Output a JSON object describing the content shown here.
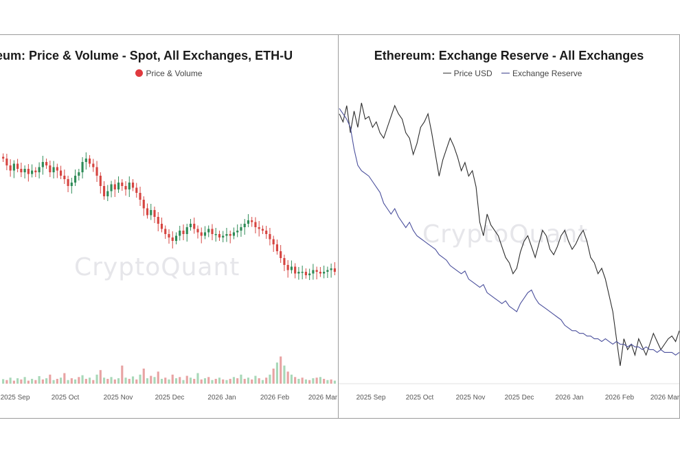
{
  "panels": {
    "left": {
      "title": "Ethereum: Price & Volume - Spot, All Exchanges, ETH-U",
      "legend": "Price & Volume",
      "watermark": "CryptoQuant",
      "xticks": [
        "2025 Sep",
        "2025 Oct",
        "2025 Nov",
        "2025 Dec",
        "2026 Jan",
        "2026 Feb",
        "2026 Mar"
      ]
    },
    "right": {
      "title": "Ethereum: Exchange Reserve - All Exchanges",
      "legend_price": "Price USD",
      "legend_reserve": "Exchange Reserve",
      "watermark": "CryptoQuant",
      "xticks": [
        "2025 Sep",
        "2025 Oct",
        "2025 Nov",
        "2025 Dec",
        "2026 Jan",
        "2026 Feb",
        "2026 Mar"
      ]
    }
  },
  "chart_data": [
    {
      "type": "candlestick",
      "title": "Ethereum: Price & Volume - Spot, All Exchanges, ETH-U",
      "legend": [
        "Price & Volume"
      ],
      "x_range": [
        "2025-08-25",
        "2026-03-08"
      ],
      "close_relative": [
        0.88,
        0.84,
        0.81,
        0.85,
        0.82,
        0.8,
        0.82,
        0.79,
        0.81,
        0.8,
        0.83,
        0.86,
        0.84,
        0.8,
        0.83,
        0.81,
        0.78,
        0.76,
        0.72,
        0.74,
        0.78,
        0.8,
        0.86,
        0.88,
        0.85,
        0.83,
        0.78,
        0.72,
        0.66,
        0.69,
        0.73,
        0.7,
        0.74,
        0.72,
        0.7,
        0.74,
        0.71,
        0.68,
        0.64,
        0.59,
        0.55,
        0.58,
        0.54,
        0.5,
        0.47,
        0.44,
        0.42,
        0.4,
        0.43,
        0.46,
        0.44,
        0.48,
        0.5,
        0.47,
        0.45,
        0.43,
        0.45,
        0.47,
        0.44,
        0.44,
        0.42,
        0.43,
        0.44,
        0.43,
        0.45,
        0.46,
        0.48,
        0.5,
        0.52,
        0.51,
        0.48,
        0.47,
        0.46,
        0.44,
        0.41,
        0.38,
        0.34,
        0.3,
        0.26,
        0.23,
        0.25,
        0.21,
        0.22,
        0.22,
        0.2,
        0.21,
        0.23,
        0.22,
        0.21,
        0.22,
        0.23,
        0.24,
        0.22
      ],
      "volume_relative": [
        0.15,
        0.12,
        0.2,
        0.1,
        0.18,
        0.14,
        0.22,
        0.1,
        0.16,
        0.12,
        0.25,
        0.14,
        0.18,
        0.3,
        0.12,
        0.16,
        0.2,
        0.35,
        0.12,
        0.18,
        0.14,
        0.22,
        0.28,
        0.16,
        0.2,
        0.12,
        0.3,
        0.45,
        0.2,
        0.16,
        0.22,
        0.14,
        0.18,
        0.6,
        0.2,
        0.16,
        0.24,
        0.14,
        0.3,
        0.5,
        0.18,
        0.26,
        0.22,
        0.4,
        0.16,
        0.2,
        0.14,
        0.3,
        0.18,
        0.22,
        0.12,
        0.26,
        0.2,
        0.16,
        0.35,
        0.14,
        0.18,
        0.22,
        0.12,
        0.16,
        0.2,
        0.14,
        0.12,
        0.16,
        0.22,
        0.18,
        0.3,
        0.16,
        0.2,
        0.14,
        0.26,
        0.18,
        0.12,
        0.2,
        0.3,
        0.5,
        0.7,
        0.9,
        0.6,
        0.4,
        0.3,
        0.22,
        0.16,
        0.2,
        0.14,
        0.12,
        0.18,
        0.2,
        0.22,
        0.16,
        0.12,
        0.14,
        0.1
      ]
    },
    {
      "type": "line",
      "title": "Ethereum: Exchange Reserve - All Exchanges",
      "x_range": [
        "2025-08-25",
        "2026-03-08"
      ],
      "series": [
        {
          "name": "Price USD",
          "color": "#2b2b2b",
          "values_relative": [
            0.95,
            0.92,
            0.98,
            0.88,
            0.96,
            0.9,
            0.99,
            0.93,
            0.94,
            0.9,
            0.92,
            0.88,
            0.86,
            0.9,
            0.94,
            0.98,
            0.95,
            0.93,
            0.88,
            0.86,
            0.8,
            0.84,
            0.9,
            0.92,
            0.95,
            0.88,
            0.8,
            0.72,
            0.78,
            0.82,
            0.86,
            0.83,
            0.79,
            0.74,
            0.77,
            0.72,
            0.74,
            0.68,
            0.55,
            0.5,
            0.58,
            0.54,
            0.52,
            0.5,
            0.46,
            0.42,
            0.4,
            0.36,
            0.38,
            0.44,
            0.48,
            0.5,
            0.46,
            0.42,
            0.47,
            0.52,
            0.5,
            0.45,
            0.43,
            0.46,
            0.5,
            0.52,
            0.48,
            0.45,
            0.47,
            0.5,
            0.52,
            0.48,
            0.42,
            0.4,
            0.36,
            0.38,
            0.34,
            0.28,
            0.22,
            0.12,
            0.02,
            0.12,
            0.08,
            0.1,
            0.06,
            0.12,
            0.09,
            0.06,
            0.1,
            0.14,
            0.11,
            0.08,
            0.1,
            0.12,
            0.13,
            0.11,
            0.15
          ]
        },
        {
          "name": "Exchange Reserve",
          "color": "#4a4f9c",
          "values_relative": [
            0.97,
            0.95,
            0.93,
            0.9,
            0.82,
            0.76,
            0.74,
            0.73,
            0.72,
            0.7,
            0.68,
            0.66,
            0.62,
            0.6,
            0.58,
            0.6,
            0.57,
            0.55,
            0.53,
            0.55,
            0.52,
            0.5,
            0.49,
            0.48,
            0.47,
            0.46,
            0.45,
            0.43,
            0.42,
            0.41,
            0.39,
            0.38,
            0.37,
            0.36,
            0.37,
            0.34,
            0.33,
            0.32,
            0.31,
            0.32,
            0.29,
            0.28,
            0.27,
            0.26,
            0.25,
            0.26,
            0.24,
            0.23,
            0.22,
            0.25,
            0.27,
            0.29,
            0.3,
            0.27,
            0.25,
            0.24,
            0.23,
            0.22,
            0.21,
            0.2,
            0.19,
            0.17,
            0.16,
            0.15,
            0.15,
            0.14,
            0.14,
            0.13,
            0.13,
            0.12,
            0.12,
            0.11,
            0.12,
            0.11,
            0.1,
            0.11,
            0.1,
            0.1,
            0.09,
            0.1,
            0.09,
            0.09,
            0.08,
            0.09,
            0.08,
            0.08,
            0.07,
            0.08,
            0.07,
            0.07,
            0.07,
            0.06,
            0.07
          ]
        }
      ]
    }
  ]
}
